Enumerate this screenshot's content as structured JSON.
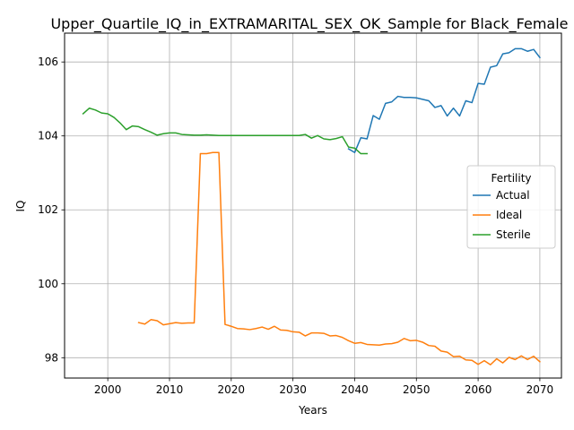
{
  "chart_data": {
    "type": "line",
    "title": "Upper_Quartile_IQ_in_EXTRAMARITAL_SEX_OK_Sample for Black_Female",
    "xlabel": "Years",
    "ylabel": "IQ",
    "xlim": [
      1993,
      2073.5
    ],
    "ylim": [
      97.45,
      106.78
    ],
    "xticks": [
      2000,
      2010,
      2020,
      2030,
      2040,
      2050,
      2060,
      2070
    ],
    "yticks": [
      98,
      100,
      102,
      104,
      106
    ],
    "grid": true,
    "legend": {
      "title": "Fertility",
      "position": "center-right"
    },
    "series": [
      {
        "name": "Actual",
        "color": "#1f77b4",
        "points": [
          [
            2039,
            103.65
          ],
          [
            2040,
            103.55
          ],
          [
            2041,
            103.95
          ],
          [
            2042,
            103.92
          ],
          [
            2043,
            104.55
          ],
          [
            2044,
            104.45
          ],
          [
            2045,
            104.88
          ],
          [
            2046,
            104.92
          ],
          [
            2047,
            105.07
          ],
          [
            2048,
            105.04
          ],
          [
            2049,
            105.04
          ],
          [
            2050,
            105.03
          ],
          [
            2051,
            104.99
          ],
          [
            2052,
            104.95
          ],
          [
            2053,
            104.77
          ],
          [
            2054,
            104.82
          ],
          [
            2055,
            104.54
          ],
          [
            2056,
            104.75
          ],
          [
            2057,
            104.54
          ],
          [
            2058,
            104.95
          ],
          [
            2059,
            104.9
          ],
          [
            2060,
            105.42
          ],
          [
            2061,
            105.4
          ],
          [
            2062,
            105.86
          ],
          [
            2063,
            105.9
          ],
          [
            2064,
            106.22
          ],
          [
            2065,
            106.25
          ],
          [
            2066,
            106.36
          ],
          [
            2067,
            106.36
          ],
          [
            2068,
            106.29
          ],
          [
            2069,
            106.34
          ],
          [
            2070,
            106.12
          ]
        ]
      },
      {
        "name": "Ideal",
        "color": "#ff7f0e",
        "points": [
          [
            2005,
            98.95
          ],
          [
            2006,
            98.91
          ],
          [
            2007,
            99.03
          ],
          [
            2008,
            99.0
          ],
          [
            2009,
            98.89
          ],
          [
            2010,
            98.92
          ],
          [
            2011,
            98.95
          ],
          [
            2012,
            98.93
          ],
          [
            2013,
            98.94
          ],
          [
            2014,
            98.94
          ],
          [
            2015,
            103.52
          ],
          [
            2016,
            103.52
          ],
          [
            2017,
            103.55
          ],
          [
            2018,
            103.55
          ],
          [
            2019,
            98.9
          ],
          [
            2020,
            98.85
          ],
          [
            2021,
            98.79
          ],
          [
            2022,
            98.78
          ],
          [
            2023,
            98.76
          ],
          [
            2024,
            98.79
          ],
          [
            2025,
            98.83
          ],
          [
            2026,
            98.77
          ],
          [
            2027,
            98.85
          ],
          [
            2028,
            98.75
          ],
          [
            2029,
            98.74
          ],
          [
            2030,
            98.7
          ],
          [
            2031,
            98.69
          ],
          [
            2032,
            98.59
          ],
          [
            2033,
            98.67
          ],
          [
            2034,
            98.67
          ],
          [
            2035,
            98.66
          ],
          [
            2036,
            98.59
          ],
          [
            2037,
            98.6
          ],
          [
            2038,
            98.55
          ],
          [
            2039,
            98.46
          ],
          [
            2040,
            98.39
          ],
          [
            2041,
            98.41
          ],
          [
            2042,
            98.36
          ],
          [
            2043,
            98.35
          ],
          [
            2044,
            98.34
          ],
          [
            2045,
            98.37
          ],
          [
            2046,
            98.38
          ],
          [
            2047,
            98.42
          ],
          [
            2048,
            98.52
          ],
          [
            2049,
            98.46
          ],
          [
            2050,
            98.47
          ],
          [
            2051,
            98.42
          ],
          [
            2052,
            98.33
          ],
          [
            2053,
            98.31
          ],
          [
            2054,
            98.18
          ],
          [
            2055,
            98.15
          ],
          [
            2056,
            98.03
          ],
          [
            2057,
            98.04
          ],
          [
            2058,
            97.94
          ],
          [
            2059,
            97.93
          ],
          [
            2060,
            97.82
          ],
          [
            2061,
            97.92
          ],
          [
            2062,
            97.81
          ],
          [
            2063,
            97.97
          ],
          [
            2064,
            97.86
          ],
          [
            2065,
            98.01
          ],
          [
            2066,
            97.95
          ],
          [
            2067,
            98.05
          ],
          [
            2068,
            97.95
          ],
          [
            2069,
            98.04
          ],
          [
            2070,
            97.89
          ]
        ]
      },
      {
        "name": "Sterile",
        "color": "#2ca02c",
        "points": [
          [
            1996,
            104.6
          ],
          [
            1997,
            104.75
          ],
          [
            1998,
            104.7
          ],
          [
            1999,
            104.62
          ],
          [
            2000,
            104.6
          ],
          [
            2001,
            104.5
          ],
          [
            2002,
            104.35
          ],
          [
            2003,
            104.17
          ],
          [
            2004,
            104.27
          ],
          [
            2005,
            104.25
          ],
          [
            2006,
            104.17
          ],
          [
            2007,
            104.1
          ],
          [
            2008,
            104.02
          ],
          [
            2009,
            104.06
          ],
          [
            2010,
            104.08
          ],
          [
            2011,
            104.08
          ],
          [
            2012,
            104.04
          ],
          [
            2013,
            104.03
          ],
          [
            2014,
            104.02
          ],
          [
            2015,
            104.02
          ],
          [
            2016,
            104.03
          ],
          [
            2017,
            104.02
          ],
          [
            2018,
            104.01
          ],
          [
            2019,
            104.01
          ],
          [
            2020,
            104.01
          ],
          [
            2021,
            104.01
          ],
          [
            2022,
            104.01
          ],
          [
            2023,
            104.01
          ],
          [
            2024,
            104.01
          ],
          [
            2025,
            104.01
          ],
          [
            2026,
            104.01
          ],
          [
            2027,
            104.01
          ],
          [
            2028,
            104.01
          ],
          [
            2029,
            104.01
          ],
          [
            2030,
            104.01
          ],
          [
            2031,
            104.01
          ],
          [
            2032,
            104.04
          ],
          [
            2033,
            103.94
          ],
          [
            2034,
            104.01
          ],
          [
            2035,
            103.92
          ],
          [
            2036,
            103.9
          ],
          [
            2037,
            103.93
          ],
          [
            2038,
            103.98
          ],
          [
            2039,
            103.7
          ],
          [
            2040,
            103.67
          ],
          [
            2041,
            103.52
          ],
          [
            2042,
            103.52
          ]
        ]
      }
    ]
  }
}
